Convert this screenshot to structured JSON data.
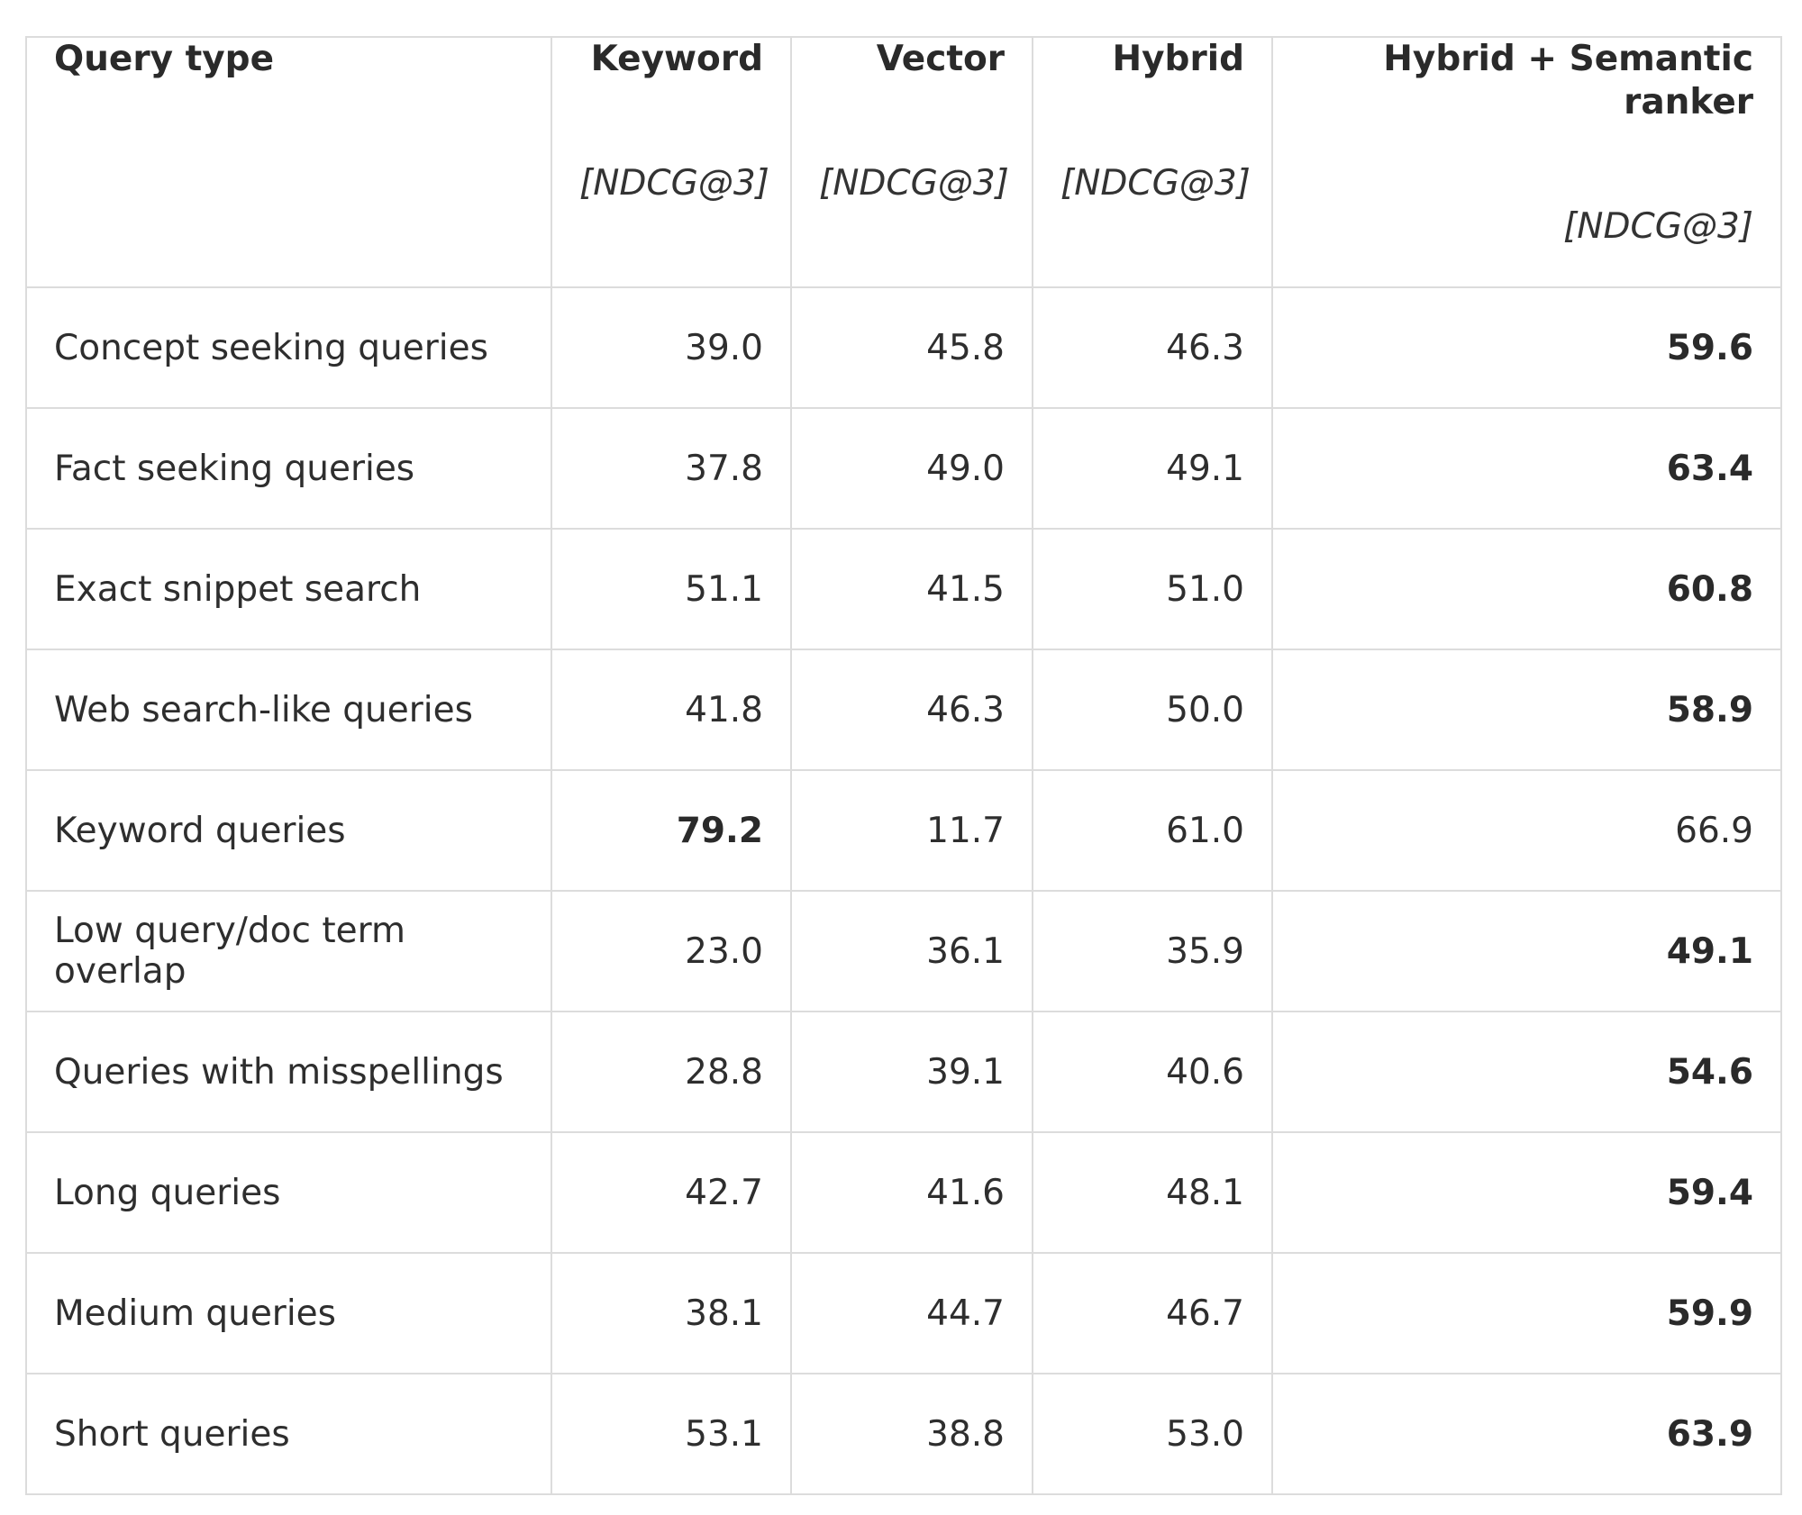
{
  "table": {
    "columns": [
      {
        "title": "Query type",
        "unit": ""
      },
      {
        "title": "Keyword",
        "unit": "[NDCG@3]"
      },
      {
        "title": "Vector",
        "unit": "[NDCG@3]"
      },
      {
        "title": "Hybrid",
        "unit": "[NDCG@3]"
      },
      {
        "title": "Hybrid + Semantic ranker",
        "unit": "[NDCG@3]"
      }
    ],
    "rows": [
      {
        "label": "Concept seeking queries",
        "values": [
          "39.0",
          "45.8",
          "46.3",
          "59.6"
        ],
        "bold_index": 3
      },
      {
        "label": "Fact seeking queries",
        "values": [
          "37.8",
          "49.0",
          "49.1",
          "63.4"
        ],
        "bold_index": 3
      },
      {
        "label": "Exact snippet search",
        "values": [
          "51.1",
          "41.5",
          "51.0",
          "60.8"
        ],
        "bold_index": 3
      },
      {
        "label": "Web search-like queries",
        "values": [
          "41.8",
          "46.3",
          "50.0",
          "58.9"
        ],
        "bold_index": 3
      },
      {
        "label": "Keyword queries",
        "values": [
          "79.2",
          "11.7",
          "61.0",
          "66.9"
        ],
        "bold_index": 0
      },
      {
        "label": "Low query/doc term overlap",
        "values": [
          "23.0",
          "36.1",
          "35.9",
          "49.1"
        ],
        "bold_index": 3
      },
      {
        "label": "Queries with misspellings",
        "values": [
          "28.8",
          "39.1",
          "40.6",
          "54.6"
        ],
        "bold_index": 3
      },
      {
        "label": "Long queries",
        "values": [
          "42.7",
          "41.6",
          "48.1",
          "59.4"
        ],
        "bold_index": 3
      },
      {
        "label": "Medium queries",
        "values": [
          "38.1",
          "44.7",
          "46.7",
          "59.9"
        ],
        "bold_index": 3
      },
      {
        "label": "Short queries",
        "values": [
          "53.1",
          "38.8",
          "53.0",
          "63.9"
        ],
        "bold_index": 3
      }
    ]
  },
  "colors": {
    "border": "#dcdcdc",
    "text": "#2e2e2e",
    "background": "#ffffff"
  }
}
